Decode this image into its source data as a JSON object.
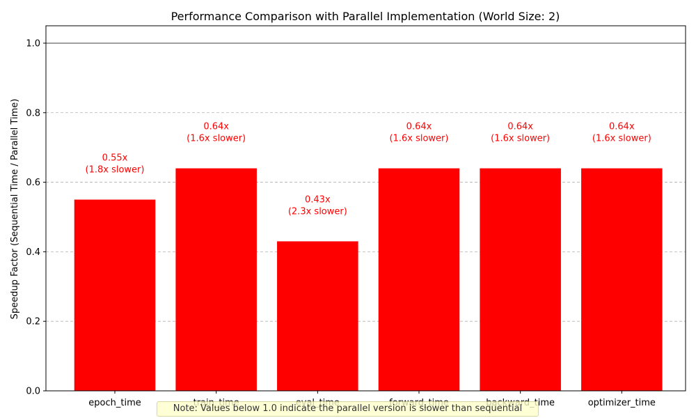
{
  "chart_data": {
    "type": "bar",
    "title": "Performance Comparison with Parallel Implementation (World Size: 2)",
    "xlabel": "",
    "ylabel": "Speedup Factor (Sequential Time / Parallel Time)",
    "categories": [
      "epoch_time",
      "train_time",
      "eval_time",
      "forward_time",
      "backward_time",
      "optimizer_time"
    ],
    "values": [
      0.55,
      0.64,
      0.43,
      0.64,
      0.64,
      0.64
    ],
    "data_labels": [
      [
        "0.55x",
        "(1.8x slower)"
      ],
      [
        "0.64x",
        "(1.6x slower)"
      ],
      [
        "0.43x",
        "(2.3x slower)"
      ],
      [
        "0.64x",
        "(1.6x slower)"
      ],
      [
        "0.64x",
        "(1.6x slower)"
      ],
      [
        "0.64x",
        "(1.6x slower)"
      ]
    ],
    "ylim": [
      0,
      1.05
    ],
    "yticks": [
      "0.0",
      "0.2",
      "0.4",
      "0.6",
      "0.8",
      "1.0"
    ],
    "reference_line": 1.0,
    "grid": "y-dashed",
    "bar_color": "#ff0000",
    "label_color": "#ff0000",
    "reference_line_color": "#808080"
  },
  "note": "Note: Values below 1.0 indicate the parallel version is slower than sequential"
}
